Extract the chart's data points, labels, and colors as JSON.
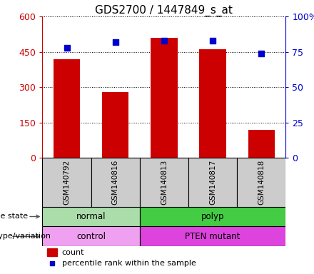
{
  "title": "GDS2700 / 1447849_s_at",
  "samples": [
    "GSM140792",
    "GSM140816",
    "GSM140813",
    "GSM140817",
    "GSM140818"
  ],
  "counts": [
    420,
    280,
    510,
    460,
    120
  ],
  "percentile_ranks": [
    78,
    82,
    83,
    83,
    74
  ],
  "ylim_left": [
    0,
    600
  ],
  "ylim_right": [
    0,
    100
  ],
  "yticks_left": [
    0,
    150,
    300,
    450,
    600
  ],
  "yticks_right": [
    0,
    25,
    50,
    75,
    100
  ],
  "ytick_labels_left": [
    "0",
    "150",
    "300",
    "450",
    "600"
  ],
  "ytick_labels_right": [
    "0",
    "25",
    "50",
    "75",
    "100%"
  ],
  "disease_state": [
    {
      "label": "normal",
      "span": [
        0,
        2
      ],
      "color": "#aaddaa"
    },
    {
      "label": "polyp",
      "span": [
        2,
        5
      ],
      "color": "#44cc44"
    }
  ],
  "genotype": [
    {
      "label": "control",
      "span": [
        0,
        2
      ],
      "color": "#f0a0f0"
    },
    {
      "label": "PTEN mutant",
      "span": [
        2,
        5
      ],
      "color": "#dd44dd"
    }
  ],
  "bar_color": "#CC0000",
  "dot_color": "#0000CC",
  "bar_width": 0.55,
  "label_row1": "disease state",
  "label_row2": "genotype/variation",
  "legend_count": "count",
  "legend_pct": "percentile rank within the sample",
  "title_fontsize": 11,
  "tick_fontsize": 9,
  "sample_cell_color": "#cccccc"
}
